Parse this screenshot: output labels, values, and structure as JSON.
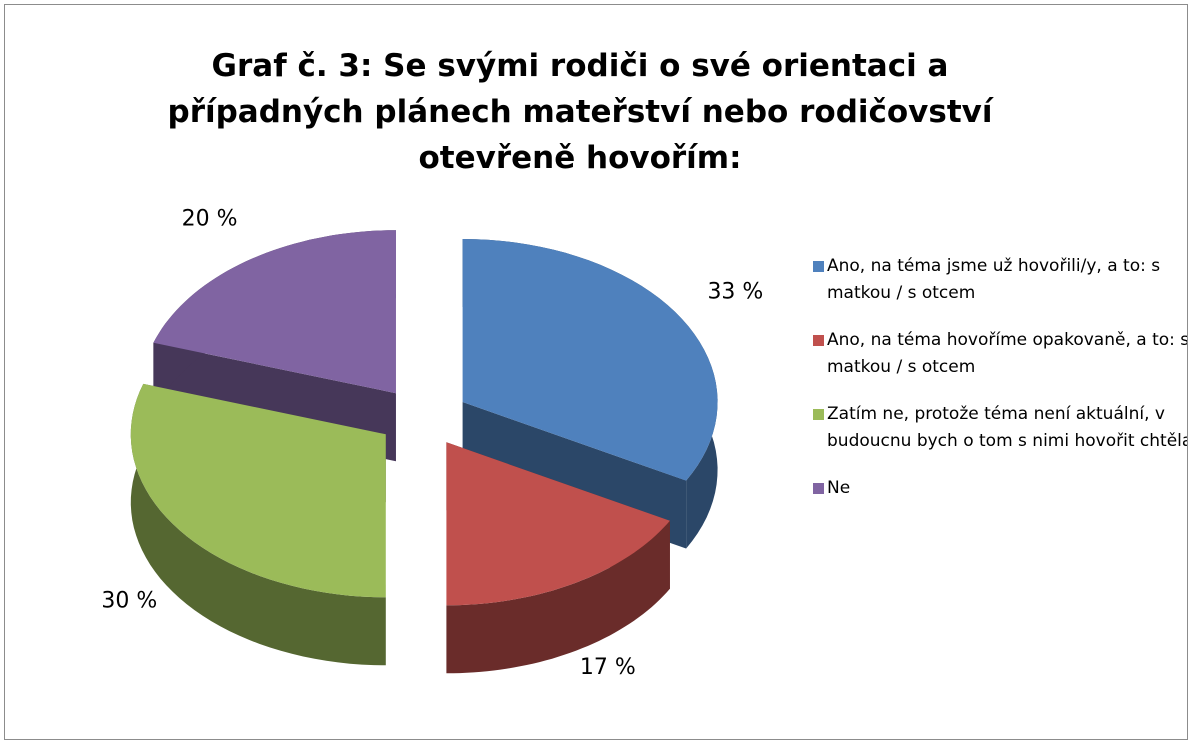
{
  "chart_data": {
    "type": "pie",
    "title": "Graf č. 3: Se svými rodiči o své orientaci a případných plánech mateřství nebo rodičovství otevřeně hovořím:",
    "categories": [
      "Ano, na téma jsme už hovořili/y, a to: s matkou / s otcem",
      "Ano, na téma hovoříme opakovaně, a to: s matkou / s otcem",
      "Zatím ne, protože téma není aktuální, v budoucnu bych o tom s nimi hovořit chtěla",
      "Ne"
    ],
    "values": [
      33,
      17,
      30,
      20
    ],
    "value_labels": [
      "33 %",
      "17 %",
      "30 %",
      "20 %"
    ],
    "colors": [
      "#4f81bd",
      "#c0504d",
      "#9bbb59",
      "#8064a2"
    ],
    "legend": "right"
  }
}
